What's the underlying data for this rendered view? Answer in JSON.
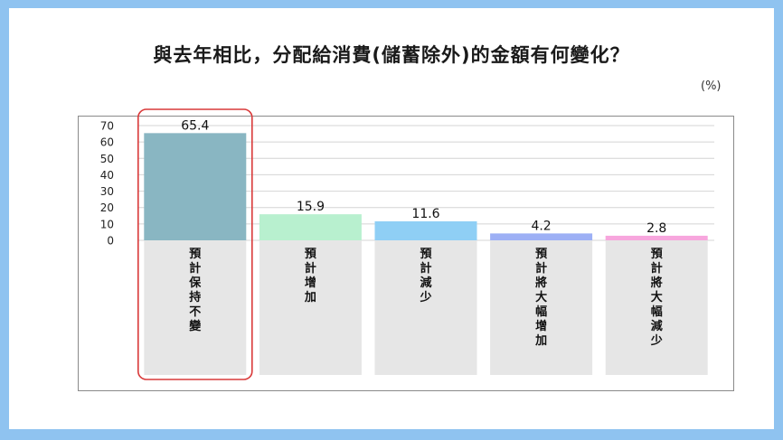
{
  "title": "與去年相比，分配給消費(儲蓄除外)的金額有何變化？",
  "unit_label": "(%)",
  "chart_data": {
    "type": "bar",
    "title": "與去年相比，分配給消費(儲蓄除外)的金額有何變化？",
    "categories": [
      "預計保持不變",
      "預計增加",
      "預計減少",
      "預計將大幅增加",
      "預計將大幅減少"
    ],
    "values": [
      65.4,
      15.9,
      11.6,
      4.2,
      2.8
    ],
    "colors": [
      "#89b6c2",
      "#b8f0cf",
      "#8fcff5",
      "#9db0f5",
      "#f7a6dd"
    ],
    "highlight_index": 0,
    "highlight_color": "#d93a3a",
    "yticks": [
      0,
      10,
      20,
      30,
      40,
      50,
      60,
      70
    ],
    "ylim": [
      0,
      70
    ],
    "grid": true
  }
}
